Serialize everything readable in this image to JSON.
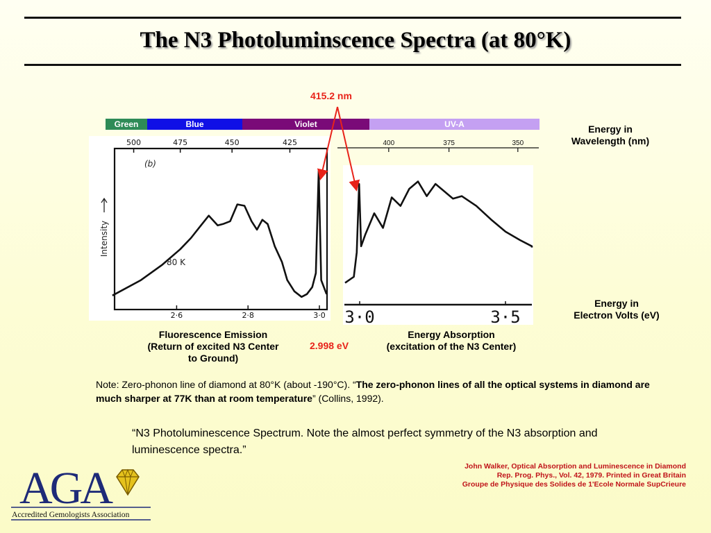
{
  "slide": {
    "title": "The N3 Photoluminscence Spectra (at 80°K)",
    "peak_wavelength_label": "415.2 nm",
    "peak_energy_label": "2.998 eV",
    "right_label_wavelength": [
      "Energy in",
      "Wavelength (nm)"
    ],
    "right_label_energy": [
      "Energy in",
      "Electron Volts (eV)"
    ],
    "caption_emission": [
      "Fluorescence Emission",
      "(Return of excited N3 Center",
      "to Ground)"
    ],
    "caption_absorption": [
      "Energy Absorption",
      "(excitation of the N3 Center)"
    ],
    "note": {
      "prefix": "Note:  Zero-phonon line of diamond at 80°K (about -190°C).  “",
      "bold": "The zero-phonon lines of all the optical systems in diamond are much sharper at 77K than at room temperature",
      "suffix": "” (Collins, 1992)."
    },
    "quote": "“N3 Photoluminescence Spectrum.  Note the almost perfect symmetry of the N3 absorption and luminescence spectra.”",
    "citation": [
      "John Walker, Optical Absorption and Luminescence in Diamond",
      "Rep. Prog. Phys., Vol. 42, 1979. Printed in Great Britain",
      "Groupe de Physique des Solides de 1'Ecole Normale SupCrieure"
    ],
    "logo": {
      "letters": "AGA",
      "name": "Accredited Gemologists Association"
    },
    "colors": {
      "accent_red": "#e8231a",
      "citation_red": "#c0141a",
      "logo_blue": "#1e2a78",
      "gold": "#e5c21c"
    }
  },
  "color_bands": [
    {
      "label": "Green",
      "color": "#2e8b57"
    },
    {
      "label": "Blue",
      "color": "#1010e6"
    },
    {
      "label": "Violet",
      "color": "#7a0a78"
    },
    {
      "label": "UV-A",
      "color": "#c4a0f2"
    }
  ],
  "chart_data": [
    {
      "type": "line",
      "name": "emission",
      "panel_label": "(b)",
      "curve_annotation": "80 K",
      "ylabel": "Intensity",
      "top_axis_ticks": [
        "500",
        "475",
        "450",
        "425"
      ],
      "bottom_axis_ticks": [
        "2·6",
        "2·8",
        "3·0"
      ],
      "x_energy_eV": [
        2.42,
        2.5,
        2.56,
        2.61,
        2.64,
        2.665,
        2.69,
        2.715,
        2.73,
        2.75,
        2.77,
        2.79,
        2.81,
        2.825,
        2.84,
        2.855,
        2.875,
        2.895,
        2.91,
        2.93,
        2.95,
        2.965,
        2.98,
        2.99,
        2.998,
        3.005,
        3.02
      ],
      "y_relative": [
        0.09,
        0.2,
        0.31,
        0.42,
        0.5,
        0.58,
        0.66,
        0.59,
        0.6,
        0.62,
        0.74,
        0.73,
        0.62,
        0.56,
        0.63,
        0.6,
        0.44,
        0.33,
        0.2,
        0.12,
        0.08,
        0.1,
        0.15,
        0.25,
        0.98,
        0.2,
        0.1
      ]
    },
    {
      "type": "line",
      "name": "absorption",
      "top_axis_ticks": [
        "400",
        "375",
        "350"
      ],
      "bottom_axis_ticks": [
        "3·0",
        "3·5"
      ],
      "x_energy_eV": [
        2.95,
        2.98,
        2.99,
        2.998,
        3.005,
        3.02,
        3.05,
        3.08,
        3.11,
        3.14,
        3.17,
        3.2,
        3.23,
        3.26,
        3.29,
        3.32,
        3.35,
        3.4,
        3.45,
        3.5,
        3.55,
        3.6,
        3.62
      ],
      "y_relative": [
        0.15,
        0.2,
        0.4,
        0.96,
        0.45,
        0.55,
        0.72,
        0.6,
        0.85,
        0.78,
        0.92,
        0.98,
        0.86,
        0.96,
        0.9,
        0.84,
        0.86,
        0.78,
        0.67,
        0.57,
        0.5,
        0.45,
        0.44
      ]
    }
  ]
}
